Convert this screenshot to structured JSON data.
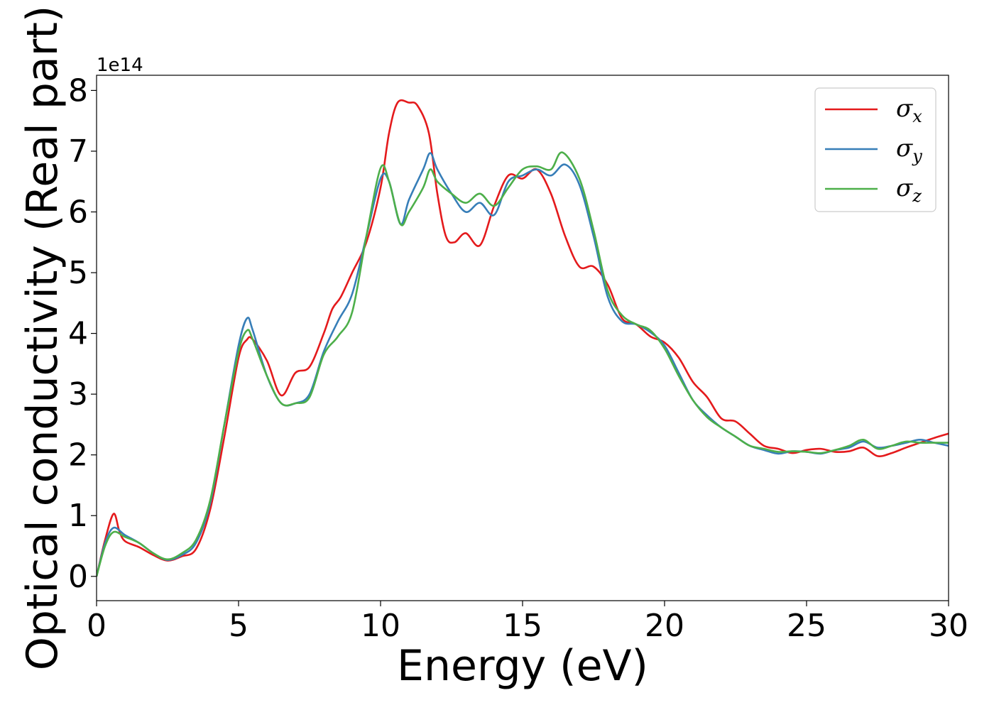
{
  "chart_data": {
    "type": "line",
    "xlabel": "Energy (eV)",
    "ylabel": "Optical conductivity (Real part)",
    "y_scale_label": "1e14",
    "y_scale": 100000000000000.0,
    "xlim": [
      0,
      30
    ],
    "ylim": [
      -0.4,
      8.25
    ],
    "xticks": [
      0,
      5,
      10,
      15,
      20,
      25,
      30
    ],
    "yticks": [
      0,
      1,
      2,
      3,
      4,
      5,
      6,
      7,
      8
    ],
    "grid": false,
    "legend_position": "top-right",
    "series": [
      {
        "name": "σx",
        "label_main": "σ",
        "label_sub": "x",
        "color": "#e41a1c",
        "points": [
          [
            0,
            0
          ],
          [
            0.3,
            0.6
          ],
          [
            0.6,
            1.03
          ],
          [
            0.8,
            0.75
          ],
          [
            1.0,
            0.58
          ],
          [
            1.5,
            0.48
          ],
          [
            2.0,
            0.35
          ],
          [
            2.5,
            0.26
          ],
          [
            3.0,
            0.33
          ],
          [
            3.5,
            0.45
          ],
          [
            4.0,
            1.1
          ],
          [
            4.5,
            2.3
          ],
          [
            5.0,
            3.6
          ],
          [
            5.3,
            3.9
          ],
          [
            5.5,
            3.9
          ],
          [
            6.0,
            3.55
          ],
          [
            6.5,
            2.98
          ],
          [
            7.0,
            3.35
          ],
          [
            7.5,
            3.45
          ],
          [
            8.0,
            4.0
          ],
          [
            8.3,
            4.4
          ],
          [
            8.6,
            4.6
          ],
          [
            9.0,
            5.0
          ],
          [
            9.5,
            5.5
          ],
          [
            10.0,
            6.4
          ],
          [
            10.3,
            7.3
          ],
          [
            10.6,
            7.8
          ],
          [
            11.0,
            7.8
          ],
          [
            11.3,
            7.75
          ],
          [
            11.7,
            7.3
          ],
          [
            12.0,
            6.3
          ],
          [
            12.3,
            5.6
          ],
          [
            12.6,
            5.5
          ],
          [
            13.0,
            5.65
          ],
          [
            13.5,
            5.45
          ],
          [
            14.0,
            6.1
          ],
          [
            14.5,
            6.6
          ],
          [
            15.0,
            6.55
          ],
          [
            15.5,
            6.7
          ],
          [
            16.0,
            6.3
          ],
          [
            16.5,
            5.6
          ],
          [
            17.0,
            5.1
          ],
          [
            17.5,
            5.1
          ],
          [
            18.0,
            4.8
          ],
          [
            18.5,
            4.25
          ],
          [
            19.0,
            4.15
          ],
          [
            19.5,
            3.95
          ],
          [
            20.0,
            3.85
          ],
          [
            20.5,
            3.6
          ],
          [
            21.0,
            3.2
          ],
          [
            21.5,
            2.95
          ],
          [
            22.0,
            2.6
          ],
          [
            22.5,
            2.55
          ],
          [
            23.0,
            2.35
          ],
          [
            23.5,
            2.15
          ],
          [
            24.0,
            2.1
          ],
          [
            24.5,
            2.03
          ],
          [
            25.0,
            2.08
          ],
          [
            25.5,
            2.1
          ],
          [
            26.0,
            2.05
          ],
          [
            26.5,
            2.06
          ],
          [
            27.0,
            2.12
          ],
          [
            27.5,
            1.98
          ],
          [
            28.0,
            2.03
          ],
          [
            28.5,
            2.12
          ],
          [
            29.0,
            2.2
          ],
          [
            29.5,
            2.28
          ],
          [
            30.0,
            2.35
          ]
        ]
      },
      {
        "name": "σy",
        "label_main": "σ",
        "label_sub": "y",
        "color": "#377eb8",
        "points": [
          [
            0,
            0
          ],
          [
            0.3,
            0.55
          ],
          [
            0.6,
            0.8
          ],
          [
            1.0,
            0.68
          ],
          [
            1.5,
            0.55
          ],
          [
            2.0,
            0.38
          ],
          [
            2.5,
            0.27
          ],
          [
            3.0,
            0.35
          ],
          [
            3.5,
            0.55
          ],
          [
            4.0,
            1.2
          ],
          [
            4.5,
            2.5
          ],
          [
            5.0,
            3.8
          ],
          [
            5.3,
            4.25
          ],
          [
            5.5,
            4.05
          ],
          [
            6.0,
            3.3
          ],
          [
            6.5,
            2.85
          ],
          [
            7.0,
            2.85
          ],
          [
            7.5,
            3.0
          ],
          [
            8.0,
            3.7
          ],
          [
            8.5,
            4.2
          ],
          [
            9.0,
            4.65
          ],
          [
            9.5,
            5.6
          ],
          [
            10.0,
            6.55
          ],
          [
            10.3,
            6.5
          ],
          [
            10.7,
            5.8
          ],
          [
            11.0,
            6.2
          ],
          [
            11.5,
            6.7
          ],
          [
            11.75,
            6.97
          ],
          [
            12.0,
            6.7
          ],
          [
            12.5,
            6.3
          ],
          [
            13.0,
            6.0
          ],
          [
            13.5,
            6.15
          ],
          [
            14.0,
            5.95
          ],
          [
            14.5,
            6.5
          ],
          [
            15.0,
            6.6
          ],
          [
            15.5,
            6.7
          ],
          [
            16.0,
            6.6
          ],
          [
            16.5,
            6.78
          ],
          [
            17.0,
            6.45
          ],
          [
            17.5,
            5.6
          ],
          [
            18.0,
            4.6
          ],
          [
            18.5,
            4.2
          ],
          [
            19.0,
            4.15
          ],
          [
            19.5,
            4.02
          ],
          [
            20.0,
            3.8
          ],
          [
            20.5,
            3.35
          ],
          [
            21.0,
            2.9
          ],
          [
            21.5,
            2.65
          ],
          [
            22.0,
            2.45
          ],
          [
            22.5,
            2.3
          ],
          [
            23.0,
            2.15
          ],
          [
            23.5,
            2.08
          ],
          [
            24.0,
            2.02
          ],
          [
            24.5,
            2.06
          ],
          [
            25.0,
            2.05
          ],
          [
            25.5,
            2.02
          ],
          [
            26.0,
            2.08
          ],
          [
            26.5,
            2.12
          ],
          [
            27.0,
            2.22
          ],
          [
            27.5,
            2.12
          ],
          [
            28.0,
            2.15
          ],
          [
            28.5,
            2.2
          ],
          [
            29.0,
            2.25
          ],
          [
            29.5,
            2.2
          ],
          [
            30.0,
            2.15
          ]
        ]
      },
      {
        "name": "σz",
        "label_main": "σ",
        "label_sub": "z",
        "color": "#4daf4a",
        "points": [
          [
            0,
            0
          ],
          [
            0.3,
            0.5
          ],
          [
            0.6,
            0.73
          ],
          [
            1.0,
            0.65
          ],
          [
            1.5,
            0.55
          ],
          [
            2.0,
            0.38
          ],
          [
            2.5,
            0.28
          ],
          [
            3.0,
            0.38
          ],
          [
            3.5,
            0.6
          ],
          [
            4.0,
            1.25
          ],
          [
            4.5,
            2.5
          ],
          [
            5.0,
            3.7
          ],
          [
            5.3,
            4.05
          ],
          [
            5.5,
            3.9
          ],
          [
            6.0,
            3.3
          ],
          [
            6.5,
            2.85
          ],
          [
            7.0,
            2.85
          ],
          [
            7.5,
            2.95
          ],
          [
            8.0,
            3.65
          ],
          [
            8.5,
            3.95
          ],
          [
            9.0,
            4.35
          ],
          [
            9.5,
            5.6
          ],
          [
            10.0,
            6.72
          ],
          [
            10.3,
            6.5
          ],
          [
            10.7,
            5.8
          ],
          [
            11.0,
            6.0
          ],
          [
            11.5,
            6.4
          ],
          [
            11.75,
            6.7
          ],
          [
            12.0,
            6.5
          ],
          [
            12.5,
            6.3
          ],
          [
            13.0,
            6.15
          ],
          [
            13.5,
            6.3
          ],
          [
            14.0,
            6.1
          ],
          [
            14.5,
            6.4
          ],
          [
            15.0,
            6.7
          ],
          [
            15.5,
            6.75
          ],
          [
            16.0,
            6.7
          ],
          [
            16.4,
            6.98
          ],
          [
            17.0,
            6.55
          ],
          [
            17.5,
            5.7
          ],
          [
            18.0,
            4.7
          ],
          [
            18.5,
            4.3
          ],
          [
            19.0,
            4.15
          ],
          [
            19.5,
            4.05
          ],
          [
            20.0,
            3.75
          ],
          [
            20.5,
            3.3
          ],
          [
            21.0,
            2.9
          ],
          [
            21.5,
            2.62
          ],
          [
            22.0,
            2.45
          ],
          [
            22.5,
            2.3
          ],
          [
            23.0,
            2.15
          ],
          [
            23.5,
            2.1
          ],
          [
            24.0,
            2.05
          ],
          [
            24.5,
            2.06
          ],
          [
            25.0,
            2.05
          ],
          [
            25.5,
            2.03
          ],
          [
            26.0,
            2.08
          ],
          [
            26.5,
            2.15
          ],
          [
            27.0,
            2.25
          ],
          [
            27.5,
            2.1
          ],
          [
            28.0,
            2.15
          ],
          [
            28.5,
            2.22
          ],
          [
            29.0,
            2.2
          ],
          [
            29.5,
            2.2
          ],
          [
            30.0,
            2.2
          ]
        ]
      }
    ]
  }
}
